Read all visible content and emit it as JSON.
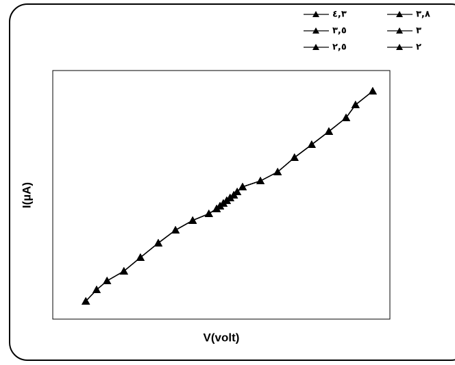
{
  "chart_data": {
    "type": "line",
    "x_label": "V(volt)",
    "y_label": "I(µA)",
    "xlim": [
      0,
      1
    ],
    "ylim": [
      0,
      1
    ],
    "x": [
      0.098,
      0.13,
      0.161,
      0.211,
      0.26,
      0.313,
      0.364,
      0.415,
      0.463,
      0.486,
      0.496,
      0.506,
      0.516,
      0.526,
      0.537,
      0.547,
      0.563,
      0.616,
      0.667,
      0.717,
      0.768,
      0.819,
      0.87,
      0.898,
      0.949
    ],
    "series": [
      {
        "name": "٤,٣",
        "color": "#000000",
        "values": [
          0.072,
          0.118,
          0.154,
          0.193,
          0.248,
          0.306,
          0.358,
          0.397,
          0.424,
          0.444,
          0.455,
          0.466,
          0.477,
          0.488,
          0.499,
          0.512,
          0.532,
          0.556,
          0.592,
          0.65,
          0.702,
          0.755,
          0.81,
          0.862,
          0.917
        ]
      },
      {
        "name": "٣,٨",
        "color": "#000000",
        "values": [
          0.072,
          0.118,
          0.154,
          0.193,
          0.248,
          0.306,
          0.358,
          0.397,
          0.424,
          0.444,
          0.455,
          0.466,
          0.477,
          0.488,
          0.499,
          0.512,
          0.532,
          0.556,
          0.592,
          0.65,
          0.702,
          0.755,
          0.81,
          0.862,
          0.917
        ]
      },
      {
        "name": "٣,٥",
        "color": "#000000",
        "values": [
          0.072,
          0.118,
          0.154,
          0.193,
          0.248,
          0.306,
          0.358,
          0.397,
          0.424,
          0.444,
          0.455,
          0.466,
          0.477,
          0.488,
          0.499,
          0.512,
          0.532,
          0.556,
          0.592,
          0.65,
          0.702,
          0.755,
          0.81,
          0.862,
          0.917
        ]
      },
      {
        "name": "٣",
        "color": "#000000",
        "values": [
          0.072,
          0.118,
          0.154,
          0.193,
          0.248,
          0.306,
          0.358,
          0.397,
          0.424,
          0.444,
          0.455,
          0.466,
          0.477,
          0.488,
          0.499,
          0.512,
          0.532,
          0.556,
          0.592,
          0.65,
          0.702,
          0.755,
          0.81,
          0.862,
          0.917
        ]
      },
      {
        "name": "٢,٥",
        "color": "#000000",
        "values": [
          0.072,
          0.118,
          0.154,
          0.193,
          0.248,
          0.306,
          0.358,
          0.397,
          0.424,
          0.444,
          0.455,
          0.466,
          0.477,
          0.488,
          0.499,
          0.512,
          0.532,
          0.556,
          0.592,
          0.65,
          0.702,
          0.755,
          0.81,
          0.862,
          0.917
        ]
      },
      {
        "name": "٢",
        "color": "#000000",
        "values": [
          0.072,
          0.118,
          0.154,
          0.193,
          0.248,
          0.306,
          0.358,
          0.397,
          0.424,
          0.444,
          0.455,
          0.466,
          0.477,
          0.488,
          0.499,
          0.512,
          0.532,
          0.556,
          0.592,
          0.65,
          0.702,
          0.755,
          0.81,
          0.862,
          0.917
        ]
      }
    ]
  }
}
